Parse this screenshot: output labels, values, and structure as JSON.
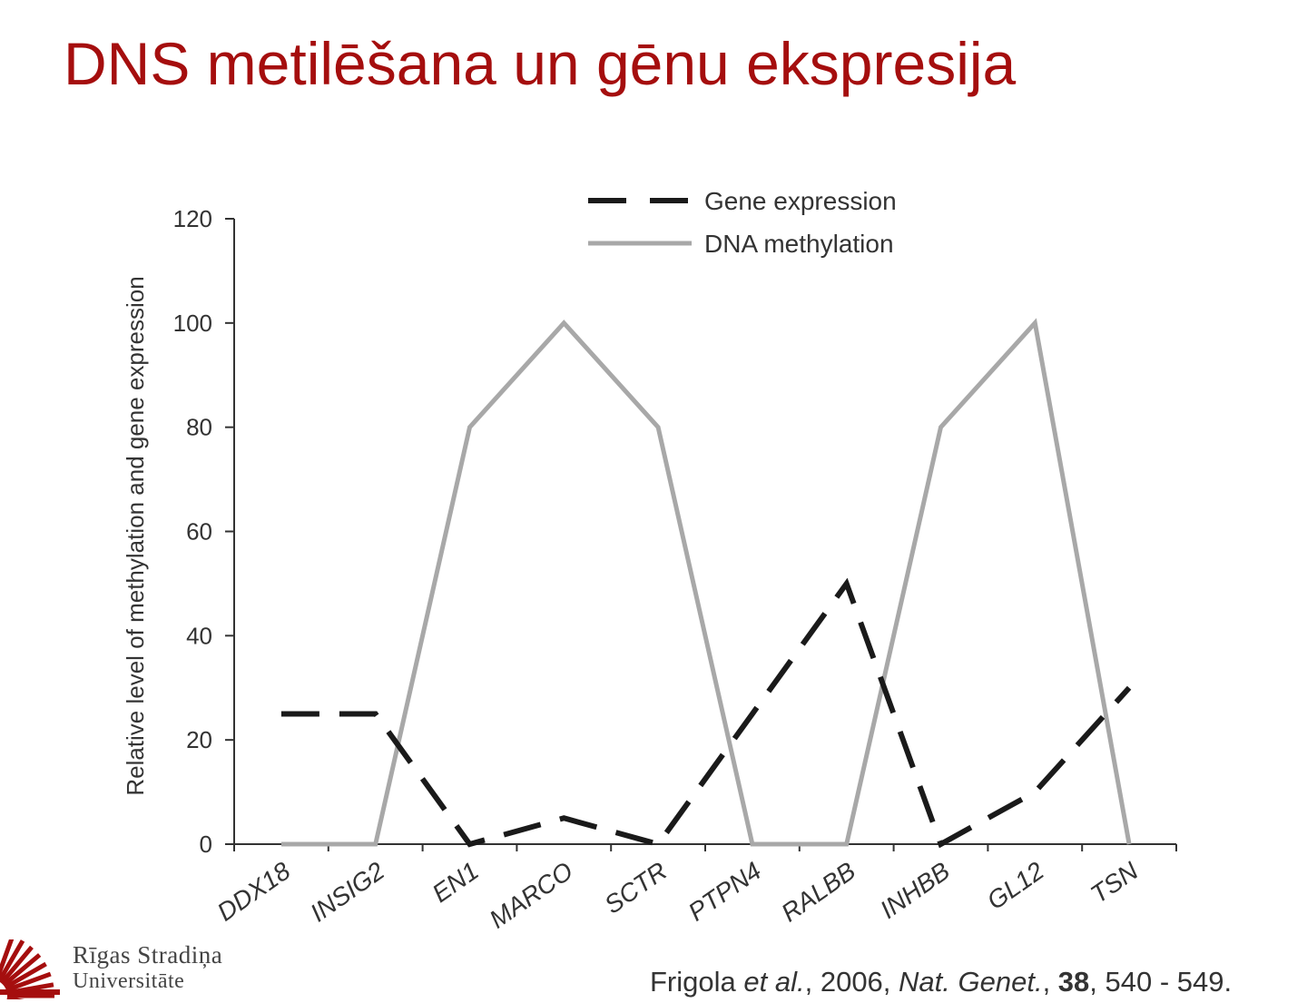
{
  "slide": {
    "title": "DNS metilēšana un gēnu ekspresija"
  },
  "logo": {
    "line1": "Rīgas Stradiņa",
    "line2": "Universitāte",
    "color": "#a50e0e"
  },
  "citation": {
    "authors": "Frigola",
    "etal": "et al.",
    "year": ", 2006, ",
    "journal": "Nat. Genet.",
    "sep": ", ",
    "volume": "38",
    "pages": ", 540 - 549."
  },
  "chart_data": {
    "type": "line",
    "ylabel": "Relative level of methylation and gene expression",
    "ylim": [
      0,
      120
    ],
    "yticks": [
      "0",
      "20",
      "40",
      "60",
      "80",
      "100",
      "120"
    ],
    "categories": [
      "DDX18",
      "INSIG2",
      "EN1",
      "MARCO",
      "SCTR",
      "PTPN4",
      "RALBB",
      "INHBB",
      "GL12",
      "TSN"
    ],
    "series": [
      {
        "name": "Gene expression",
        "values": [
          25,
          25,
          0,
          5,
          0,
          25,
          50,
          0,
          10,
          30
        ],
        "color": "#1a1a1a",
        "style": "dashed"
      },
      {
        "name": "DNA methylation",
        "values": [
          0,
          0,
          80,
          100,
          80,
          0,
          0,
          80,
          100,
          0
        ],
        "color": "#a8a8a8",
        "style": "solid"
      }
    ],
    "legend": "top",
    "grid": false
  }
}
